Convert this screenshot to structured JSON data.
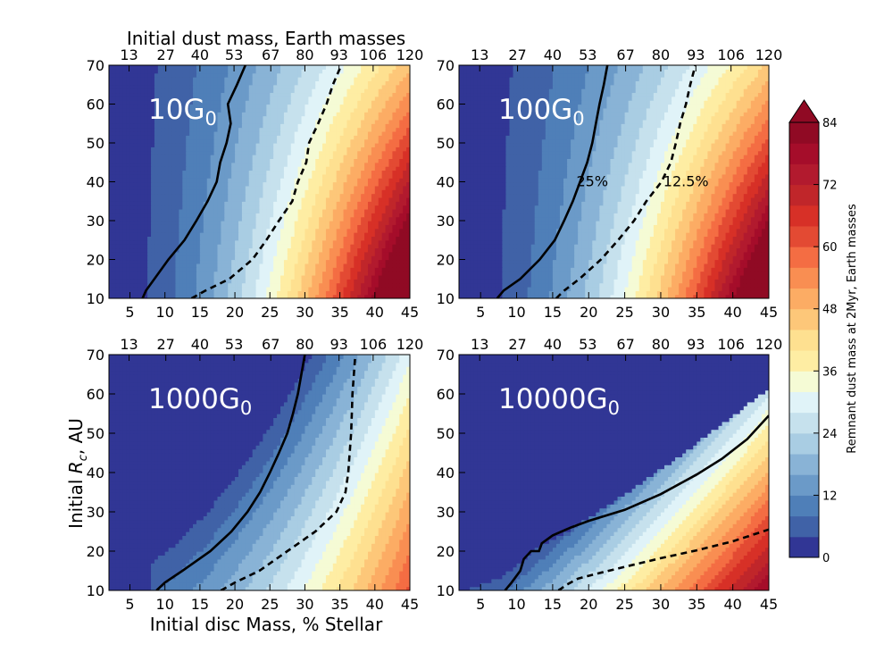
{
  "chart_data": {
    "type": "heatmap",
    "top_axis_title": "Initial dust mass, Earth masses",
    "x_axis_title": "Initial disc Mass, % Stellar",
    "y_axis_title_prefix": "Initial ",
    "y_axis_title_var": "R",
    "y_axis_title_sub": "c",
    "y_axis_title_suffix": ", AU",
    "xlim": [
      2,
      45
    ],
    "ylim": [
      10,
      70
    ],
    "x_ticks": [
      5,
      10,
      15,
      20,
      25,
      30,
      35,
      40,
      45
    ],
    "y_ticks": [
      10,
      20,
      30,
      40,
      50,
      60,
      70
    ],
    "top_ticks": [
      {
        "x": 4.875,
        "label": "13"
      },
      {
        "x": 10.125,
        "label": "27"
      },
      {
        "x": 15.0,
        "label": "40"
      },
      {
        "x": 19.875,
        "label": "53"
      },
      {
        "x": 25.125,
        "label": "67"
      },
      {
        "x": 30.0,
        "label": "80"
      },
      {
        "x": 34.875,
        "label": "93"
      },
      {
        "x": 39.75,
        "label": "106"
      },
      {
        "x": 45.0,
        "label": "120"
      }
    ],
    "colorbar": {
      "label": "Remnant dust mass at 2Myr, Earth masses",
      "min": 0,
      "max": 84,
      "step": 4,
      "ticks": [
        0,
        12,
        24,
        36,
        48,
        60,
        72,
        84
      ],
      "extend": "max",
      "colors": [
        "#313695",
        "#4062a7",
        "#4f7fb8",
        "#6b9ac8",
        "#89b3d6",
        "#a9cde3",
        "#c6e1ed",
        "#e0f3f8",
        "#f5fbd5",
        "#feeda3",
        "#fee090",
        "#fdc779",
        "#fcac64",
        "#f98e52",
        "#f46d43",
        "#e34a33",
        "#d73027",
        "#c0262a",
        "#b21a2e",
        "#a50d2a",
        "#900a24"
      ]
    },
    "annotations": [
      {
        "panel": 1,
        "text": "25%",
        "x": 20.5,
        "y": 40
      },
      {
        "panel": 1,
        "text": "12.5%",
        "x": 33.5,
        "y": 40
      }
    ],
    "panels": [
      {
        "label_main": "10G",
        "label_sub": "0",
        "solid_25pct": [
          [
            6.8,
            10
          ],
          [
            7.3,
            12
          ],
          [
            8.5,
            15
          ],
          [
            10.5,
            20
          ],
          [
            12.8,
            25
          ],
          [
            14.5,
            30
          ],
          [
            16.1,
            35
          ],
          [
            17.4,
            40
          ],
          [
            17.9,
            45
          ],
          [
            18.8,
            50
          ],
          [
            19.4,
            55
          ],
          [
            19.0,
            60
          ],
          [
            20.3,
            65
          ],
          [
            21.5,
            70
          ]
        ],
        "dashed_12_5pct": [
          [
            13.8,
            10
          ],
          [
            15.8,
            12
          ],
          [
            19.2,
            15
          ],
          [
            22.5,
            20
          ],
          [
            24.5,
            25
          ],
          [
            26.3,
            30
          ],
          [
            28.2,
            35
          ],
          [
            29.0,
            40
          ],
          [
            30.2,
            45
          ],
          [
            30.6,
            50
          ],
          [
            31.9,
            55
          ],
          [
            33.1,
            60
          ],
          [
            34.0,
            65
          ],
          [
            35.2,
            70
          ]
        ]
      },
      {
        "label_main": "100G",
        "label_sub": "0",
        "solid_25pct": [
          [
            7.3,
            10
          ],
          [
            8.2,
            12
          ],
          [
            10.5,
            15
          ],
          [
            13.2,
            20
          ],
          [
            15.3,
            25
          ],
          [
            16.6,
            30
          ],
          [
            17.8,
            35
          ],
          [
            18.8,
            40
          ],
          [
            19.8,
            45
          ],
          [
            20.5,
            50
          ],
          [
            21.0,
            55
          ],
          [
            21.5,
            60
          ],
          [
            22.1,
            65
          ],
          [
            22.6,
            70
          ]
        ],
        "dashed_12_5pct": [
          [
            15.5,
            10
          ],
          [
            16.6,
            12
          ],
          [
            18.7,
            15
          ],
          [
            21.7,
            20
          ],
          [
            24.1,
            25
          ],
          [
            26.3,
            30
          ],
          [
            28.0,
            35
          ],
          [
            30.1,
            40
          ],
          [
            31.4,
            45
          ],
          [
            32.1,
            50
          ],
          [
            32.7,
            55
          ],
          [
            33.5,
            60
          ],
          [
            34.1,
            65
          ],
          [
            34.8,
            70
          ]
        ]
      },
      {
        "label_main": "1000G",
        "label_sub": "0",
        "solid_25pct": [
          [
            8.8,
            10
          ],
          [
            10.0,
            12
          ],
          [
            12.5,
            15
          ],
          [
            16.5,
            20
          ],
          [
            19.5,
            25
          ],
          [
            21.8,
            30
          ],
          [
            23.6,
            35
          ],
          [
            25.0,
            40
          ],
          [
            26.3,
            45
          ],
          [
            27.5,
            50
          ],
          [
            28.3,
            55
          ],
          [
            29.0,
            60
          ],
          [
            29.5,
            65
          ],
          [
            30.0,
            70
          ]
        ],
        "dashed_12_5pct": [
          [
            18.0,
            10
          ],
          [
            20.0,
            12
          ],
          [
            23.5,
            15
          ],
          [
            27.5,
            20
          ],
          [
            31.5,
            25
          ],
          [
            34.5,
            30
          ],
          [
            35.8,
            35
          ],
          [
            36.2,
            40
          ],
          [
            36.4,
            45
          ],
          [
            36.6,
            50
          ],
          [
            36.7,
            55
          ],
          [
            36.8,
            60
          ],
          [
            37.0,
            65
          ],
          [
            37.2,
            70
          ]
        ]
      },
      {
        "label_main": "10000G",
        "label_sub": "0",
        "solid_25pct": [
          [
            8.4,
            10
          ],
          [
            9.3,
            12
          ],
          [
            10.5,
            15
          ],
          [
            11.0,
            18
          ],
          [
            12.0,
            20
          ],
          [
            13.1,
            20
          ],
          [
            13.5,
            22
          ],
          [
            15.0,
            24
          ],
          [
            17.5,
            26
          ],
          [
            20.0,
            27.7
          ],
          [
            25.0,
            30.5
          ],
          [
            30.0,
            34.5
          ],
          [
            35.0,
            39.5
          ],
          [
            38.5,
            43.5
          ],
          [
            42.0,
            48.5
          ],
          [
            45.0,
            54.5
          ]
        ],
        "dashed_12_5pct": [
          [
            15.8,
            10
          ],
          [
            17.0,
            11.5
          ],
          [
            18.5,
            13
          ],
          [
            21.0,
            14.2
          ],
          [
            25.0,
            16
          ],
          [
            30.0,
            18.2
          ],
          [
            35.0,
            20.2
          ],
          [
            40.0,
            22.5
          ],
          [
            45.0,
            25.5
          ]
        ]
      }
    ]
  }
}
